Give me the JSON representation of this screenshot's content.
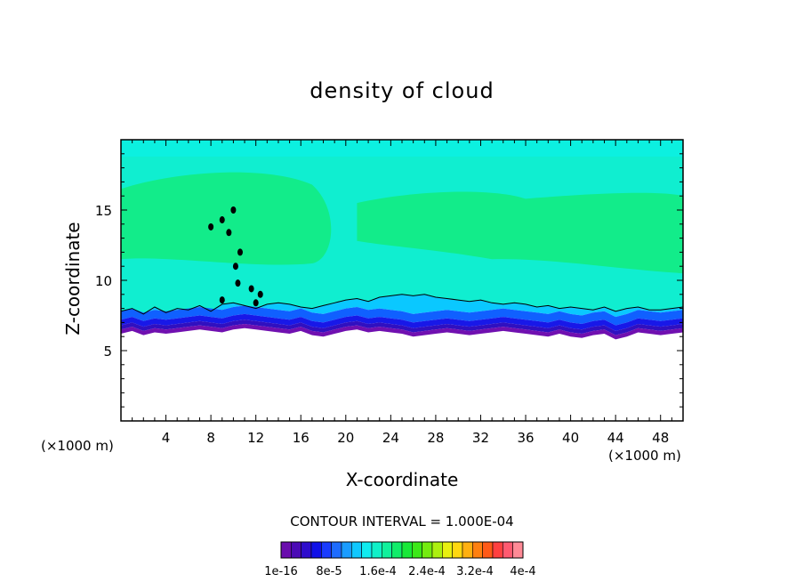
{
  "chart_data": {
    "type": "heatmap",
    "title": "density of cloud",
    "xlabel": "X-coordinate",
    "ylabel": "Z-coordinate",
    "x_unit": "(×1000 m)",
    "y_unit": "(×1000 m)",
    "xlim": [
      0,
      50
    ],
    "ylim": [
      0,
      20
    ],
    "x_ticks": [
      4,
      8,
      12,
      16,
      20,
      24,
      28,
      32,
      36,
      40,
      44,
      48
    ],
    "y_ticks": [
      5,
      10,
      15
    ],
    "contour_interval_label": "CONTOUR INTERVAL = 1.000E-04",
    "colorbar": {
      "colors": [
        "#6a0dad",
        "#4b0ab6",
        "#2e0ccc",
        "#1010e8",
        "#1a3cff",
        "#1e6cff",
        "#1a9cff",
        "#10c8ff",
        "#10ecf0",
        "#10f0c8",
        "#10f09c",
        "#10ec6a",
        "#18e838",
        "#3ce818",
        "#74ec10",
        "#acf010",
        "#e8f010",
        "#ffd810",
        "#ffb010",
        "#ff8010",
        "#ff5a18",
        "#ff4040",
        "#ff5a70",
        "#ff8a96"
      ],
      "tick_labels": [
        "1e-16",
        "8e-5",
        "1.6e-4",
        "2.4e-4",
        "3.2e-4",
        "4e-4"
      ]
    },
    "field_colors": {
      "top": "#0cf0e0",
      "core": "#12ec8a",
      "mid": "#10eed0",
      "lower": "#0ac8ff",
      "deep1": "#1060ff",
      "deep2": "#1818e8",
      "base1": "#3010c0",
      "base2": "#7010b0"
    },
    "cloud_base_z": [
      6.2,
      6.4,
      6.1,
      6.3,
      6.2,
      6.3,
      6.4,
      6.5,
      6.4,
      6.3,
      6.5,
      6.6,
      6.5,
      6.4,
      6.3,
      6.2,
      6.4,
      6.1,
      6.0,
      6.2,
      6.4,
      6.5,
      6.3,
      6.4,
      6.3,
      6.2,
      6.0,
      6.1,
      6.2,
      6.3,
      6.2,
      6.1,
      6.2,
      6.3,
      6.4,
      6.3,
      6.2,
      6.1,
      6.0,
      6.2,
      6.0,
      5.9,
      6.1,
      6.2,
      5.8,
      6.0,
      6.3,
      6.2,
      6.1,
      6.2,
      6.3
    ],
    "contour_z": [
      7.8,
      8.0,
      7.6,
      8.1,
      7.7,
      8.0,
      7.9,
      8.2,
      7.8,
      8.3,
      8.4,
      8.2,
      8.0,
      8.3,
      8.4,
      8.3,
      8.1,
      8.0,
      8.2,
      8.4,
      8.6,
      8.7,
      8.5,
      8.8,
      8.9,
      9.0,
      8.9,
      9.0,
      8.8,
      8.7,
      8.6,
      8.5,
      8.6,
      8.4,
      8.3,
      8.4,
      8.3,
      8.1,
      8.2,
      8.0,
      8.1,
      8.0,
      7.9,
      8.1,
      7.8,
      8.0,
      8.1,
      7.9,
      7.9,
      8.0,
      8.1
    ]
  }
}
